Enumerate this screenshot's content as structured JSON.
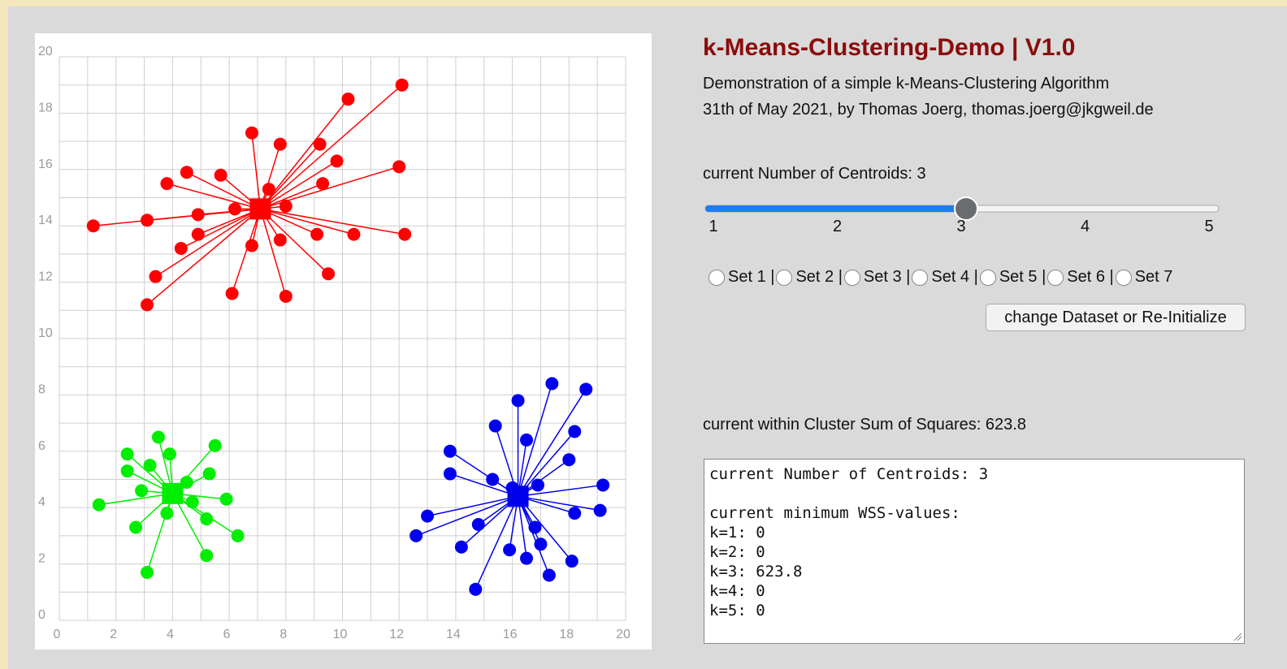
{
  "chart_data": {
    "type": "scatter",
    "xlim": [
      0,
      20
    ],
    "ylim": [
      0,
      20
    ],
    "xticks": [
      0,
      2,
      4,
      6,
      8,
      10,
      12,
      14,
      16,
      18,
      20
    ],
    "yticks": [
      0,
      2,
      4,
      6,
      8,
      10,
      12,
      14,
      16,
      18,
      20
    ],
    "xminorticks": [
      1,
      3,
      5,
      7,
      9,
      11,
      13,
      15,
      17,
      19
    ],
    "yminorticks": [
      1,
      3,
      5,
      7,
      9,
      11,
      13,
      15,
      17,
      19
    ],
    "grid": true,
    "series": [
      {
        "color": "#ff0000",
        "centroid": [
          7.1,
          14.6
        ],
        "x": [
          1.2,
          3.1,
          4.9,
          4.9,
          4.3,
          3.4,
          3.1,
          3.8,
          4.5,
          5.7,
          6.2,
          6.8,
          6.8,
          6.1,
          8.0,
          7.8,
          7.4,
          8.0,
          7.8,
          9.2,
          9.8,
          9.3,
          9.1,
          10.4,
          9.5,
          10.2,
          12.1,
          12.0,
          12.2
        ],
        "y": [
          14.0,
          14.2,
          14.4,
          13.7,
          13.2,
          12.2,
          11.2,
          15.5,
          15.9,
          15.8,
          14.6,
          17.3,
          13.3,
          11.6,
          11.5,
          13.5,
          15.3,
          14.7,
          16.9,
          16.9,
          16.3,
          15.5,
          13.7,
          13.7,
          12.3,
          18.5,
          19.0,
          16.1,
          13.7
        ]
      },
      {
        "color": "#00ee00",
        "centroid": [
          4.0,
          4.5
        ],
        "x": [
          1.4,
          2.4,
          2.4,
          2.9,
          3.2,
          3.5,
          3.9,
          2.7,
          3.8,
          3.1,
          4.5,
          4.7,
          5.2,
          5.2,
          5.3,
          5.5,
          5.9,
          6.3
        ],
        "y": [
          4.1,
          5.9,
          5.3,
          4.6,
          5.5,
          6.5,
          5.9,
          3.3,
          3.8,
          1.7,
          4.9,
          4.2,
          3.6,
          2.3,
          5.2,
          6.2,
          4.3,
          3.0
        ]
      },
      {
        "color": "#0000ee",
        "centroid": [
          16.2,
          4.4
        ],
        "x": [
          12.6,
          13.0,
          13.8,
          13.8,
          14.2,
          14.8,
          14.7,
          15.3,
          15.4,
          15.9,
          16.0,
          16.2,
          16.5,
          16.5,
          16.8,
          16.9,
          17.0,
          17.3,
          17.4,
          18.0,
          18.2,
          18.2,
          18.1,
          18.6,
          19.1,
          19.2
        ],
        "y": [
          3.0,
          3.7,
          6.0,
          5.2,
          2.6,
          3.4,
          1.1,
          5.0,
          6.9,
          2.5,
          4.7,
          7.8,
          6.4,
          2.2,
          3.3,
          4.8,
          2.7,
          1.6,
          8.4,
          5.7,
          3.8,
          6.7,
          2.1,
          8.2,
          3.9,
          4.8
        ]
      }
    ]
  },
  "header": {
    "title": "k-Means-Clustering-Demo | V1.0",
    "subtitle": [
      "Demonstration of a simple k-Means-Clustering Algorithm",
      "31th of May 2021, by Thomas Joerg, thomas.joerg@jkgweil.de"
    ]
  },
  "controls": {
    "centroid_label": "current Number of Centroids: 3",
    "slider": {
      "min": 1,
      "max": 5,
      "value": 3,
      "ticks": [
        1,
        2,
        3,
        4,
        5
      ]
    },
    "datasets": [
      "Set 1 |",
      "Set 2 |",
      "Set 3 |",
      "Set 4 |",
      "Set 5 |",
      "Set 6 |",
      "Set 7"
    ],
    "button": "change Dataset or Re-Initialize",
    "wss_label": "current within Cluster Sum of Squares: 623.8",
    "log": [
      "current Number of Centroids: 3",
      "",
      "current minimum WSS-values:",
      "k=1: 0",
      "k=2: 0",
      "k=3: 623.8",
      "k=4: 0",
      "k=5: 0"
    ]
  }
}
